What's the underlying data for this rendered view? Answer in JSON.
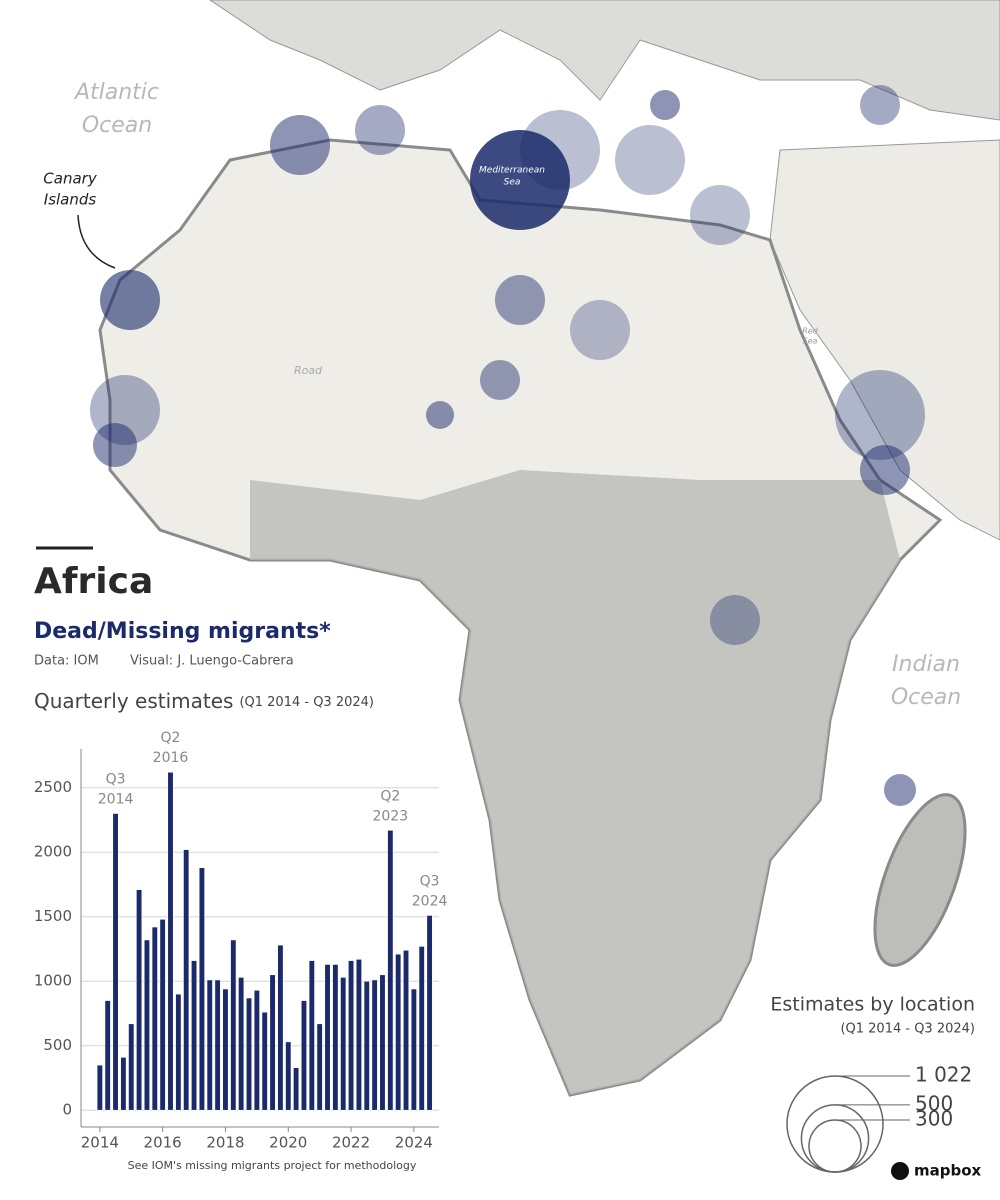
{
  "header": {
    "title": "Africa",
    "subtitle": "Dead/Missing migrants*",
    "source": "Data: IOM",
    "credit": "Visual: J. Luengo-Cabrera"
  },
  "map": {
    "labels": {
      "atlantic": [
        "Atlantic",
        "Ocean"
      ],
      "canary": [
        "Canary",
        "Islands"
      ],
      "mediterranean": [
        "Mediterranean",
        "Sea"
      ],
      "red_sea": [
        "Red",
        "Sea"
      ],
      "road": "Road",
      "indian": [
        "Indian",
        "Ocean"
      ]
    },
    "attribution": "mapbox"
  },
  "map_legend": {
    "title": "Estimates by location",
    "subtitle": "(Q1 2014 - Q3 2024)",
    "sizes": [
      {
        "value": 1022,
        "label": "1 022"
      },
      500,
      300
    ]
  },
  "chart_data": {
    "type": "bar",
    "title": "Quarterly estimates",
    "subtitle": "(Q1 2014 - Q3 2024)",
    "footnote": "See IOM's missing migrants project for methodology",
    "color": "#1b2a6b",
    "x": [
      2014,
      2014.25,
      2014.5,
      2014.75,
      2015,
      2015.25,
      2015.5,
      2015.75,
      2016,
      2016.25,
      2016.5,
      2016.75,
      2017,
      2017.25,
      2017.5,
      2017.75,
      2018,
      2018.25,
      2018.5,
      2018.75,
      2019,
      2019.25,
      2019.5,
      2019.75,
      2020,
      2020.25,
      2020.5,
      2020.75,
      2021,
      2021.25,
      2021.5,
      2021.75,
      2022,
      2022.25,
      2022.5,
      2022.75,
      2023,
      2023.25,
      2023.5,
      2023.75,
      2024,
      2024.25,
      2024.5
    ],
    "values": [
      350,
      850,
      2300,
      410,
      670,
      1710,
      1320,
      1420,
      1480,
      2620,
      900,
      2020,
      1160,
      1880,
      1010,
      1010,
      940,
      1320,
      1030,
      870,
      930,
      760,
      1050,
      1280,
      530,
      330,
      850,
      1160,
      670,
      1130,
      1130,
      1030,
      1160,
      1170,
      1000,
      1010,
      1050,
      2170,
      1210,
      1240,
      940,
      1270,
      1510
    ],
    "annotations": [
      {
        "x": 2014.5,
        "text": [
          "Q3",
          "2014"
        ]
      },
      {
        "x": 2016.25,
        "text": [
          "Q2",
          "2016"
        ]
      },
      {
        "x": 2023.25,
        "text": [
          "Q2",
          "2023"
        ]
      },
      {
        "x": 2024.5,
        "text": [
          "Q3",
          "2024"
        ]
      }
    ],
    "xlim": [
      2013.4,
      2024.8
    ],
    "xticks": [
      2014,
      2016,
      2018,
      2020,
      2022,
      2024
    ],
    "ylim": [
      -130,
      2800
    ],
    "yticks": [
      0,
      500,
      1000,
      1500,
      2000,
      2500
    ],
    "grid": true
  }
}
